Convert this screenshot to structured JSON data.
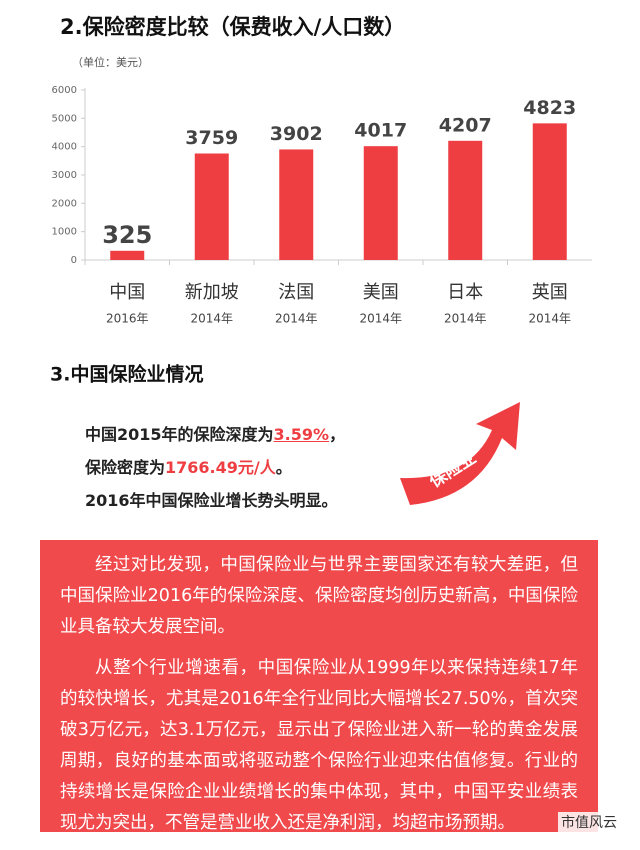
{
  "chart_data": {
    "type": "bar",
    "title": "2.保险密度比较（保费收入/人口数）",
    "unit": "（单位：美元）",
    "categories": [
      "中国",
      "新加坡",
      "法国",
      "美国",
      "日本",
      "英国"
    ],
    "years": [
      "2016年",
      "2014年",
      "2014年",
      "2014年",
      "2014年",
      "2014年"
    ],
    "values": [
      325,
      3759,
      3902,
      4017,
      4207,
      4823
    ],
    "color": "#ef3e42",
    "ylim": [
      0,
      6000
    ],
    "yticks": [
      0,
      1000,
      2000,
      3000,
      4000,
      5000,
      6000
    ],
    "grid": false
  },
  "section": {
    "title": "3.中国保险业情况",
    "lines": [
      [
        "中国2015年的保险深度为",
        "3.59%",
        "，"
      ],
      [
        "保险密度为",
        "1766.49元/人",
        "。"
      ],
      [
        "2016年中国保险业增长势头明显。"
      ]
    ],
    "arrow_label": "保险业",
    "paragraphs": [
      "经过对比发现，中国保险业与世界主要国家还有较大差距，但中国保险业2016年的保险深度、保险密度均创历史新高，中国保险业具备较大发展空间。",
      "从整个行业增速看，中国保险业从1999年以来保持连续17年的较快增长，尤其是2016年全行业同比大幅增长27.50%，首次突破3万亿元，达3.1万亿元，显示出了保险业进入新一轮的黄金发展周期，良好的基本面或将驱动整个保险行业迎来估值修复。行业的持续增长是保险企业业绩增长的集中体现，其中，中国平安业绩表现尤为突出，不管是营业收入还是净利润，均超市场预期。"
    ]
  },
  "footer": {
    "brand": "市值风云"
  }
}
